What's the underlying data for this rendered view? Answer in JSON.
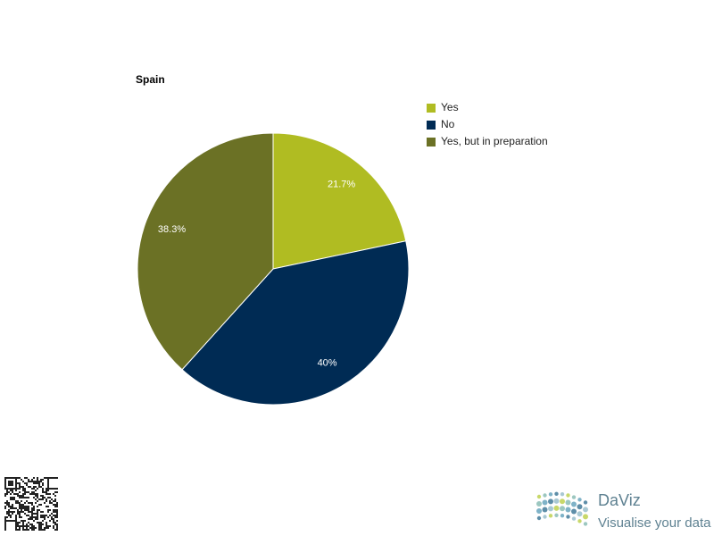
{
  "chart_data": {
    "type": "pie",
    "title": "Spain",
    "categories": [
      "Yes",
      "No",
      "Yes, but in preparation"
    ],
    "values": [
      21.7,
      40,
      38.3
    ],
    "value_labels": [
      "21.7%",
      "40%",
      "38.3%"
    ],
    "colors": [
      "#b0bc22",
      "#002b54",
      "#6b7125"
    ],
    "legend": "right"
  },
  "branding": {
    "name": "DaViz",
    "tagline": "Visualise your data"
  }
}
